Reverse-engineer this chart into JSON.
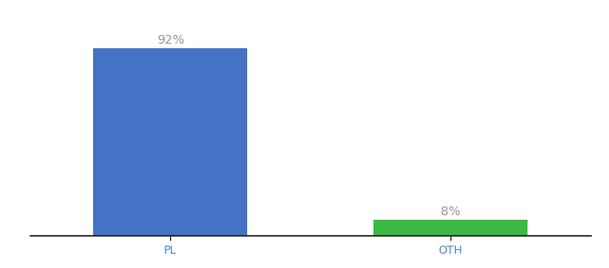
{
  "categories": [
    "PL",
    "OTH"
  ],
  "values": [
    92,
    8
  ],
  "bar_colors": [
    "#4472c4",
    "#3cb943"
  ],
  "value_labels": [
    "92%",
    "8%"
  ],
  "background_color": "#ffffff",
  "label_color": "#999999",
  "label_fontsize": 10,
  "tick_fontsize": 9,
  "ylim": [
    0,
    105
  ],
  "bar_width": 0.55,
  "xlim": [
    -0.5,
    1.5
  ]
}
